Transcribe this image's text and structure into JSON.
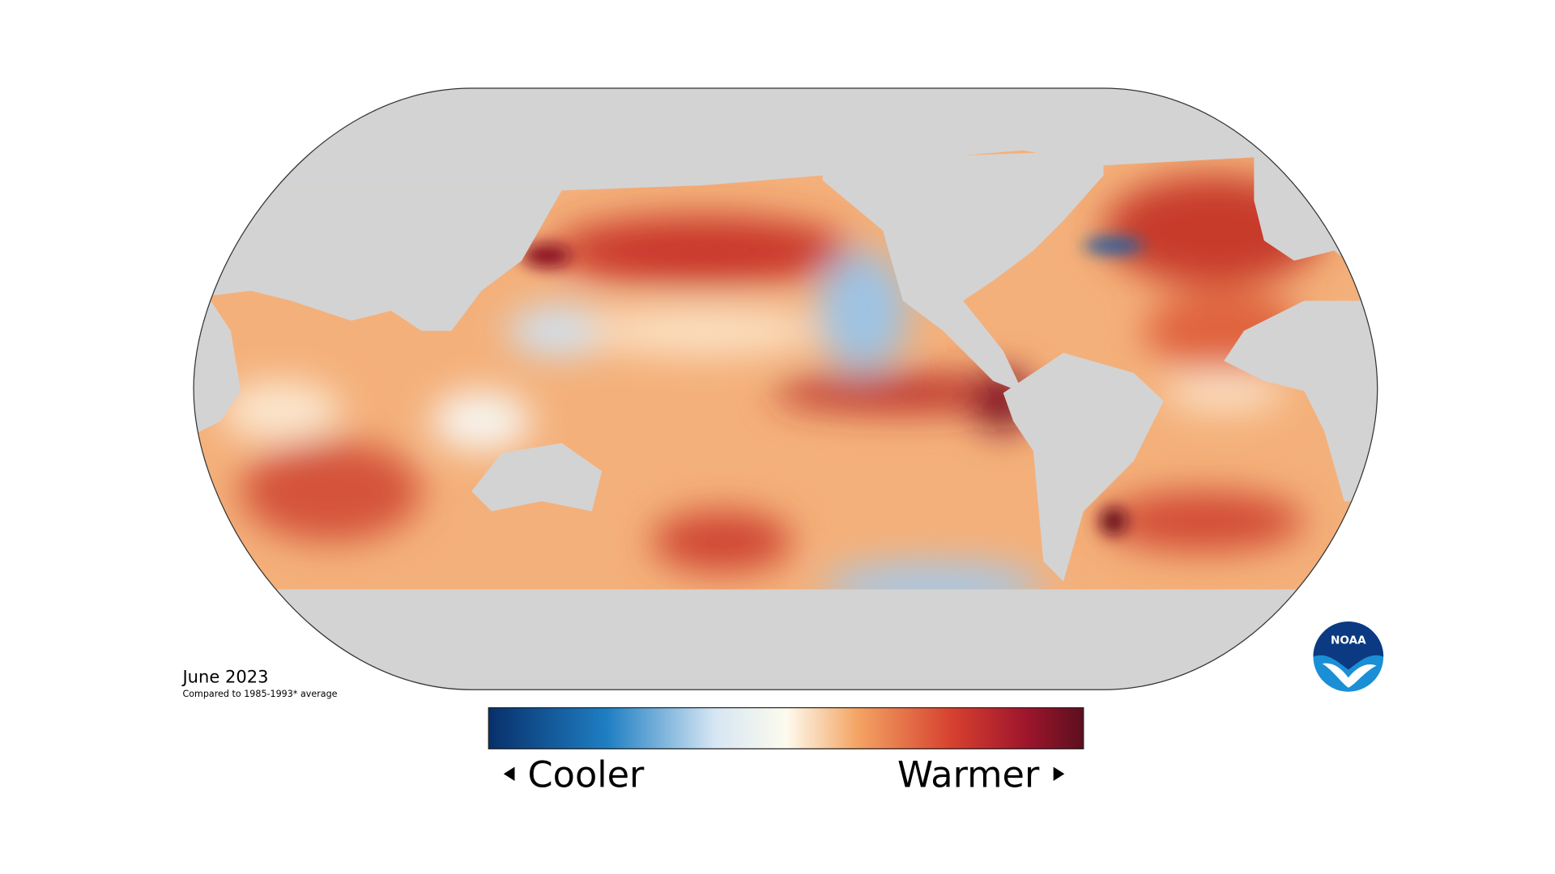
{
  "map": {
    "date": "June 2023",
    "caption": "Compared to 1985-1993* average"
  },
  "legend": {
    "low_label": "Cooler",
    "high_label": "Warmer"
  },
  "logo": {
    "text": "NOAA"
  }
}
